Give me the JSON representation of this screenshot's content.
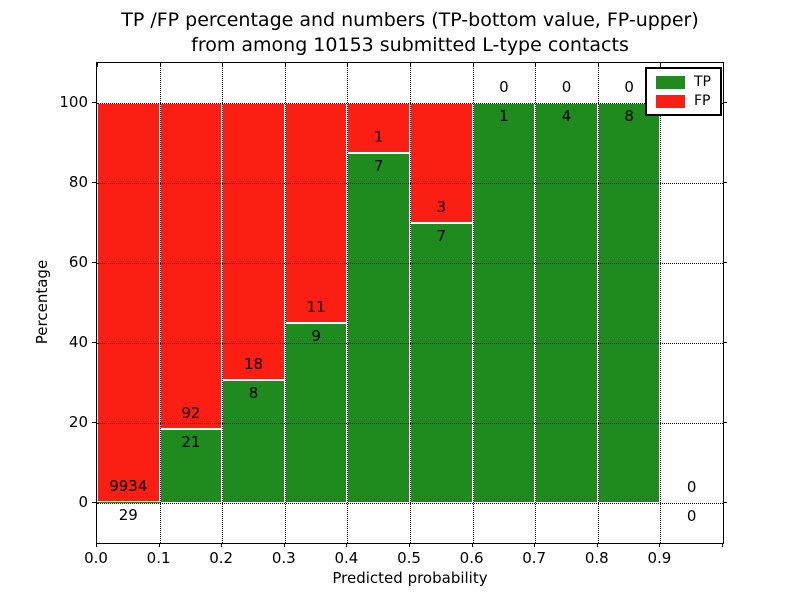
{
  "title": {
    "line1": "TP /FP percentage and numbers (TP-bottom value, FP-upper)",
    "line2": "from among 10153 submitted L-type contacts"
  },
  "chart_data": {
    "type": "bar",
    "stacked": true,
    "title": "TP /FP percentage and numbers (TP-bottom value, FP-upper) from among 10153 submitted L-type contacts",
    "xlabel": "Predicted probability",
    "ylabel": "Percentage",
    "xlim": [
      0.0,
      1.0
    ],
    "ylim": [
      -10,
      110
    ],
    "grid": true,
    "xticks": [
      {
        "v": 0.0,
        "label": "0.0"
      },
      {
        "v": 0.1,
        "label": "0.1"
      },
      {
        "v": 0.2,
        "label": "0.2"
      },
      {
        "v": 0.3,
        "label": "0.3"
      },
      {
        "v": 0.4,
        "label": "0.4"
      },
      {
        "v": 0.5,
        "label": "0.5"
      },
      {
        "v": 0.6,
        "label": "0.6"
      },
      {
        "v": 0.7,
        "label": "0.7"
      },
      {
        "v": 0.8,
        "label": "0.8"
      },
      {
        "v": 0.9,
        "label": "0.9"
      },
      {
        "v": 1.0,
        "label": ""
      }
    ],
    "yticks": [
      {
        "v": 0,
        "label": "0"
      },
      {
        "v": 20,
        "label": "20"
      },
      {
        "v": 40,
        "label": "40"
      },
      {
        "v": 60,
        "label": "60"
      },
      {
        "v": 80,
        "label": "80"
      },
      {
        "v": 100,
        "label": "100"
      }
    ],
    "colors": {
      "tp": "#1f8b1f",
      "fp": "#fb1e13"
    },
    "legend": {
      "position": "upper right",
      "entries": [
        {
          "label": "TP",
          "color": "#1f8b1f"
        },
        {
          "label": "FP",
          "color": "#fb1e13"
        }
      ]
    },
    "bins": [
      {
        "range": [
          0.0,
          0.1
        ],
        "tp": 29,
        "fp": 9934,
        "tp_pct": 0.29
      },
      {
        "range": [
          0.1,
          0.2
        ],
        "tp": 21,
        "fp": 92,
        "tp_pct": 18.58
      },
      {
        "range": [
          0.2,
          0.3
        ],
        "tp": 8,
        "fp": 18,
        "tp_pct": 30.77
      },
      {
        "range": [
          0.3,
          0.4
        ],
        "tp": 9,
        "fp": 11,
        "tp_pct": 45.0
      },
      {
        "range": [
          0.4,
          0.5
        ],
        "tp": 7,
        "fp": 1,
        "tp_pct": 87.5
      },
      {
        "range": [
          0.5,
          0.6
        ],
        "tp": 7,
        "fp": 3,
        "tp_pct": 70.0
      },
      {
        "range": [
          0.6,
          0.7
        ],
        "tp": 1,
        "fp": 0,
        "tp_pct": 100.0
      },
      {
        "range": [
          0.7,
          0.8
        ],
        "tp": 4,
        "fp": 0,
        "tp_pct": 100.0
      },
      {
        "range": [
          0.8,
          0.9
        ],
        "tp": 8,
        "fp": 0,
        "tp_pct": 100.0
      },
      {
        "range": [
          0.9,
          1.0
        ],
        "tp": 0,
        "fp": 0,
        "tp_pct": null
      }
    ]
  }
}
